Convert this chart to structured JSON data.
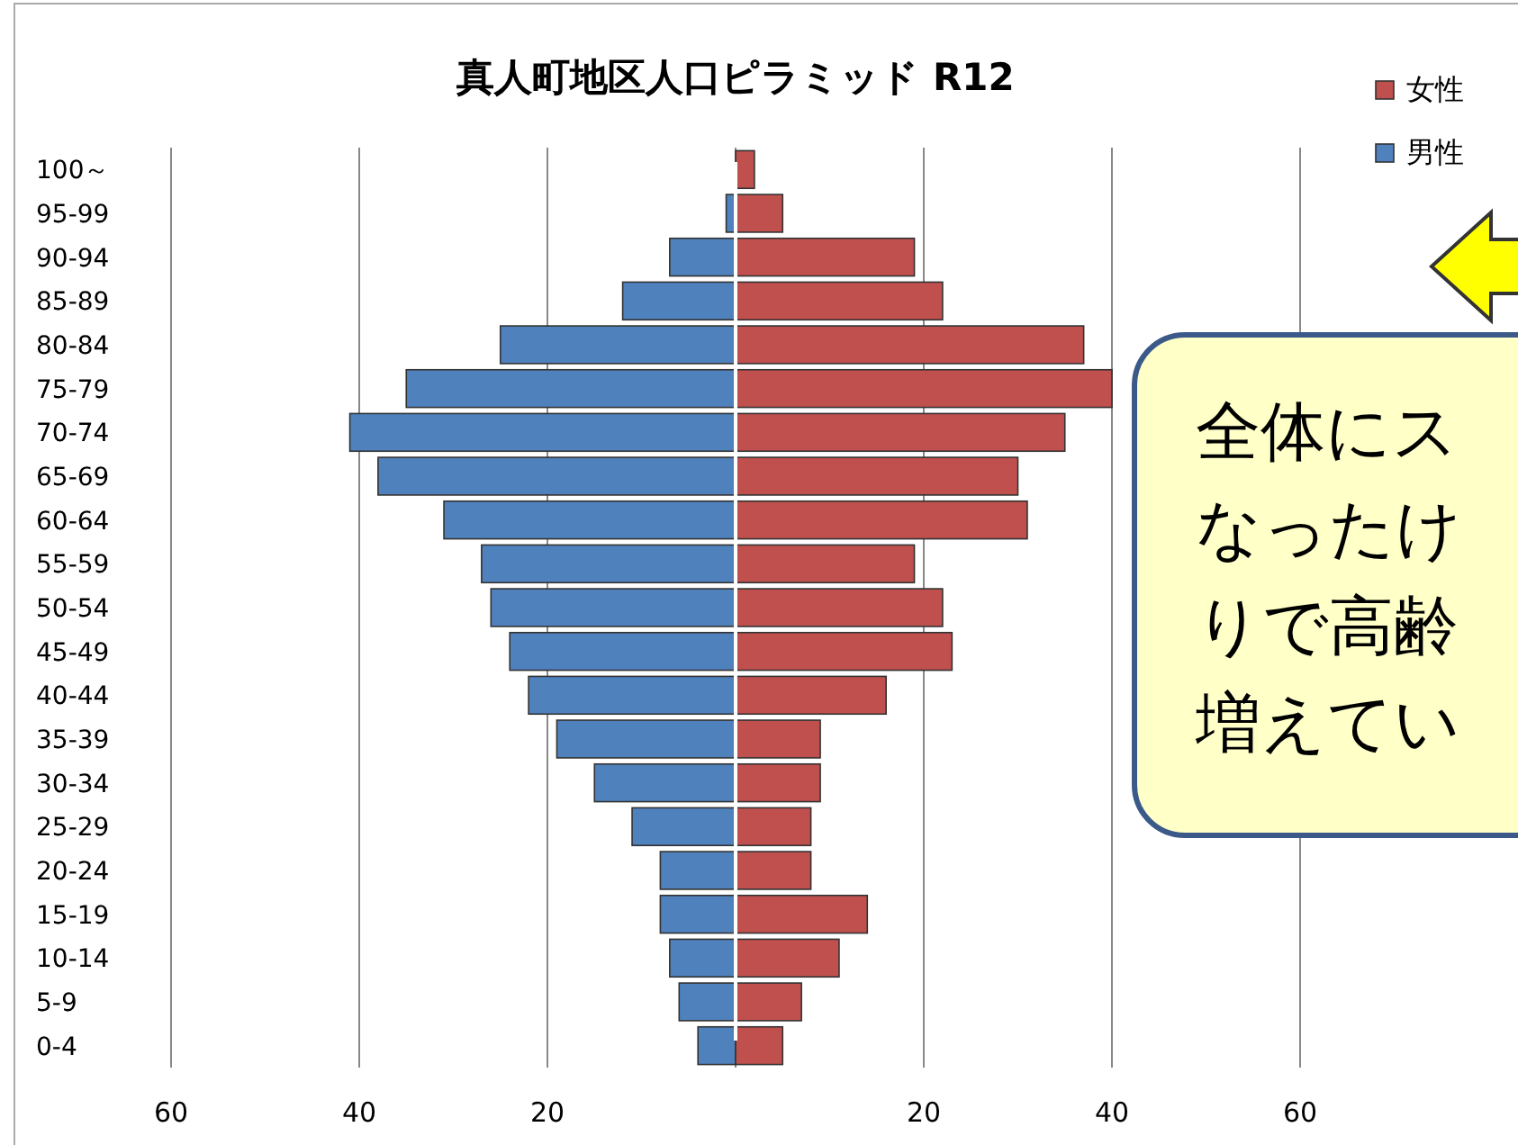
{
  "chart_data": {
    "type": "bar",
    "orientation": "horizontal",
    "stacked": true,
    "title": "真人町地区人口ピラミッド R12",
    "categories": [
      "100～",
      "95-99",
      "90-94",
      "85-89",
      "80-84",
      "75-79",
      "70-74",
      "65-69",
      "60-64",
      "55-59",
      "50-54",
      "45-49",
      "40-44",
      "35-39",
      "30-34",
      "25-29",
      "20-24",
      "15-19",
      "10-14",
      "5-9",
      "0-4"
    ],
    "series": [
      {
        "name": "男性",
        "color": "#4f81bd",
        "values": [
          0,
          -1,
          -7,
          -12,
          -25,
          -35,
          -41,
          -38,
          -31,
          -27,
          -26,
          -24,
          -22,
          -19,
          -15,
          -11,
          -8,
          -8,
          -7,
          -6,
          -4
        ]
      },
      {
        "name": "女性",
        "color": "#c0504d",
        "values": [
          2,
          5,
          19,
          22,
          37,
          40,
          35,
          30,
          31,
          19,
          22,
          23,
          16,
          9,
          9,
          8,
          8,
          14,
          11,
          7,
          5
        ]
      }
    ],
    "xlim": [
      -60,
      60
    ],
    "xticks": [
      {
        "value": -60,
        "label": "60"
      },
      {
        "value": -40,
        "label": "40"
      },
      {
        "value": -20,
        "label": "20"
      },
      {
        "value": 0,
        "label": null
      },
      20,
      40,
      60
    ],
    "grid": "x",
    "legend": "top right",
    "annotations": [
      "全体にス",
      "なったけ",
      "りで高齢",
      "増えてい"
    ]
  }
}
